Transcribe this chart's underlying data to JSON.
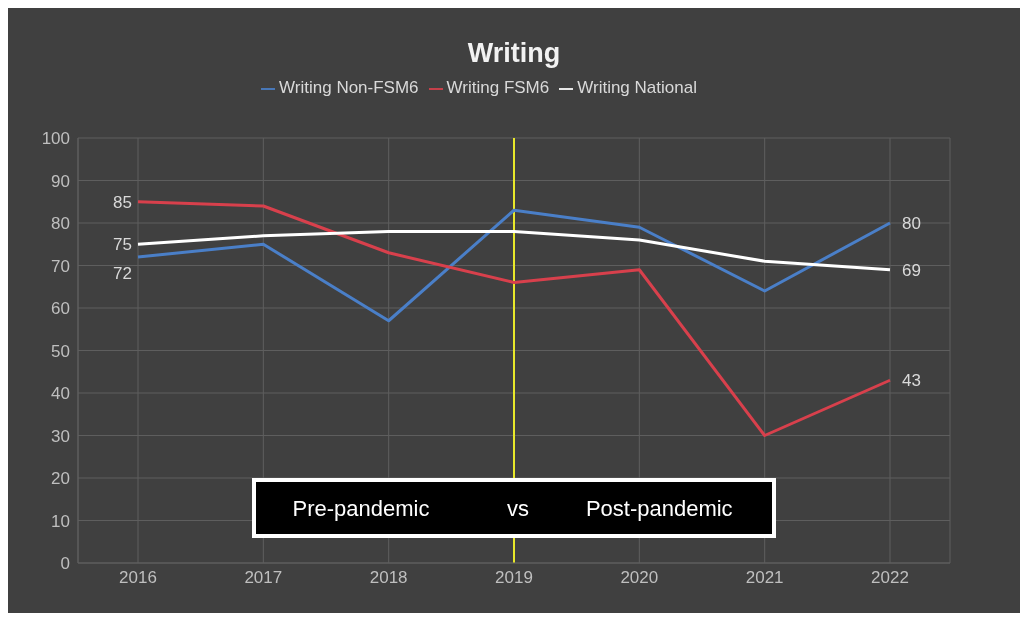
{
  "chart_data": {
    "type": "line",
    "title": "Writing",
    "categories": [
      "2016",
      "2017",
      "2018",
      "2019",
      "2020",
      "2021",
      "2022"
    ],
    "series": [
      {
        "name": "Writing Non-FSM6",
        "color": "#4a7fc8",
        "values": [
          72,
          75,
          57,
          83,
          79,
          64,
          80
        ],
        "value_labels": [
          "72",
          null,
          null,
          null,
          null,
          null,
          "80"
        ]
      },
      {
        "name": "Writing FSM6",
        "color": "#d8404c",
        "values": [
          85,
          84,
          73,
          66,
          69,
          30,
          43
        ],
        "value_labels": [
          "85",
          null,
          null,
          null,
          null,
          null,
          "43"
        ]
      },
      {
        "name": "Writing National",
        "color": "#ffffff",
        "values": [
          75,
          77,
          78,
          78,
          76,
          71,
          69
        ],
        "value_labels": [
          "75",
          null,
          null,
          null,
          null,
          null,
          "69"
        ]
      }
    ],
    "ylim": [
      0,
      100
    ],
    "yticks": [
      0,
      10,
      20,
      30,
      40,
      50,
      60,
      70,
      80,
      90,
      100
    ],
    "grid": true,
    "legend": "top",
    "marker": "none",
    "line_style": "solid",
    "ref_lines": [
      {
        "axis": "x",
        "value": "2019",
        "color": "#e8e82a"
      }
    ],
    "annotations": [
      "Pre-pandemic",
      "vs",
      "Post-pandemic"
    ]
  }
}
